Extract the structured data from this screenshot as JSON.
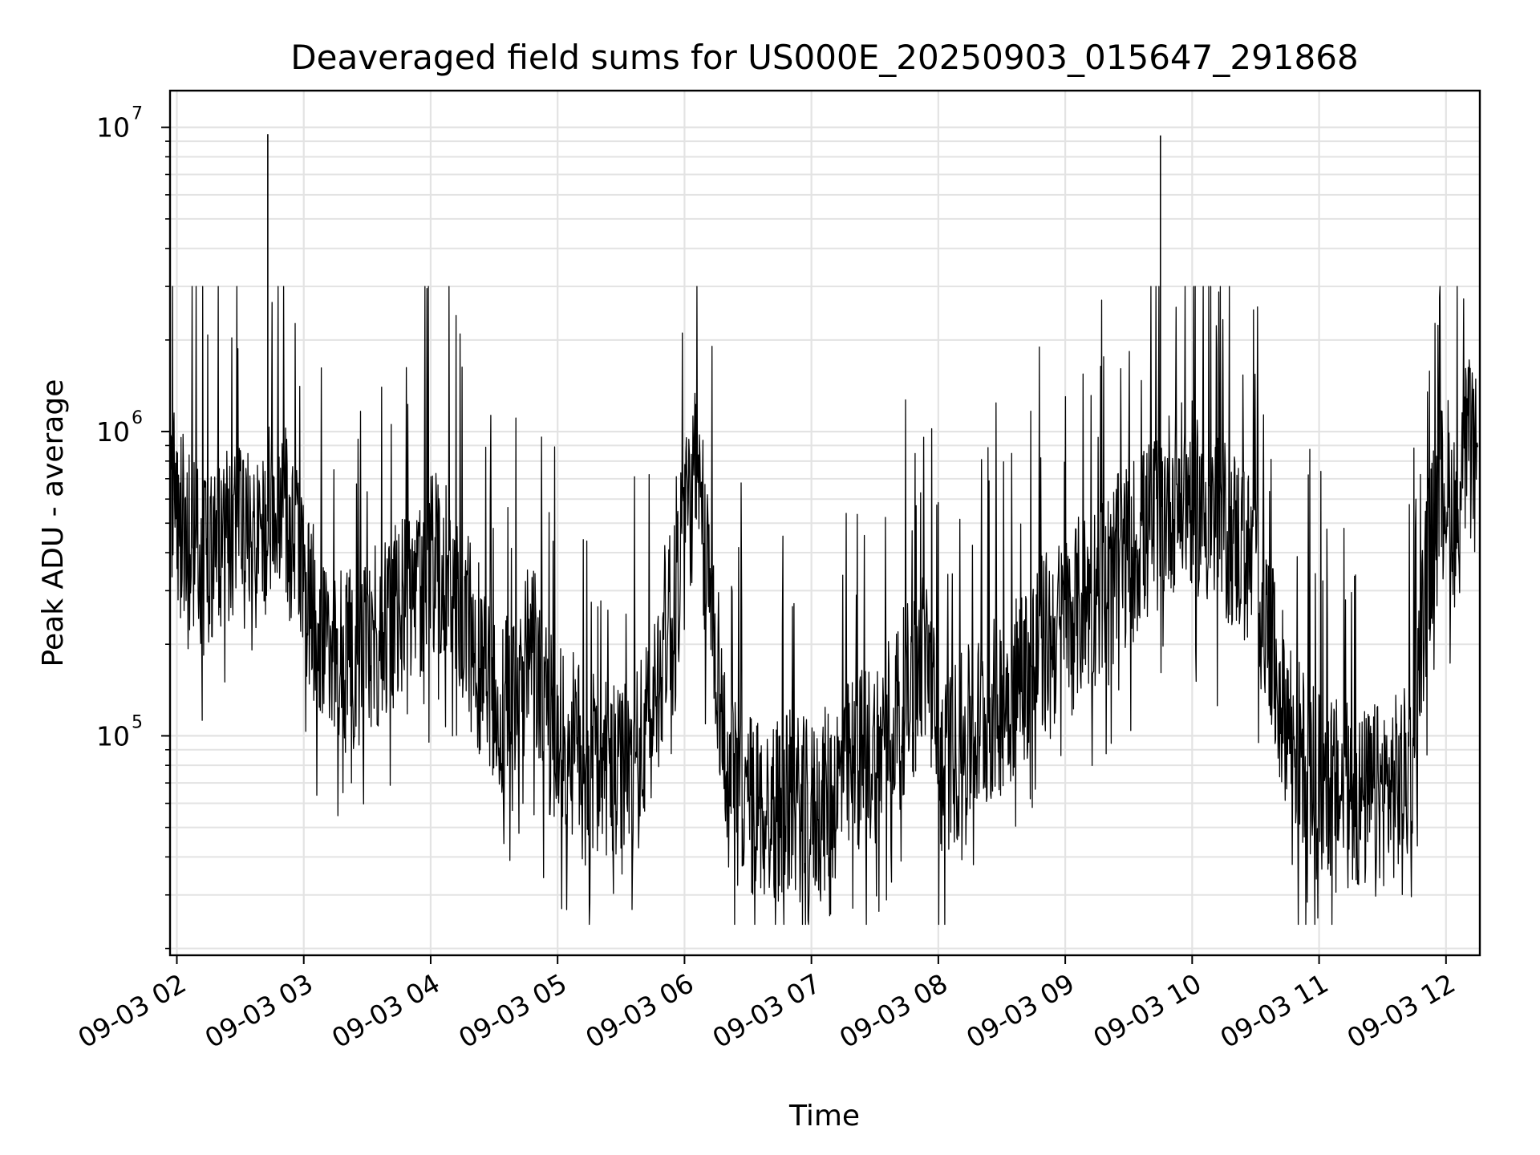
{
  "chart_data": {
    "type": "line",
    "title": "Deaveraged field sums for US000E_20250903_015647_291868",
    "xlabel": "Time",
    "ylabel": "Peak ADU - average",
    "y_scale": "log",
    "ylim": [
      19000,
      13200000
    ],
    "xlim": [
      "2025-09-03T01:56:47",
      "2025-09-03T12:16:00"
    ],
    "x_ticks": [
      "09-03 02",
      "09-03 03",
      "09-03 04",
      "09-03 05",
      "09-03 06",
      "09-03 07",
      "09-03 08",
      "09-03 09",
      "09-03 10",
      "09-03 11",
      "09-03 12"
    ],
    "y_ticks": [
      {
        "base": "10",
        "exp": "5",
        "value": 100000
      },
      {
        "base": "10",
        "exp": "6",
        "value": 1000000
      },
      {
        "base": "10",
        "exp": "7",
        "value": 10000000
      }
    ],
    "grid": true,
    "line_color": "#000000",
    "series": [
      {
        "x": [
          "2025-09-03T01:57",
          "2025-09-03T02:05",
          "2025-09-03T02:15",
          "2025-09-03T02:25",
          "2025-09-03T02:35",
          "2025-09-03T02:42",
          "2025-09-03T02:50",
          "2025-09-03T03:00",
          "2025-09-03T03:10",
          "2025-09-03T03:20",
          "2025-09-03T03:30",
          "2025-09-03T03:40",
          "2025-09-03T03:50",
          "2025-09-03T04:00",
          "2025-09-03T04:10",
          "2025-09-03T04:20",
          "2025-09-03T04:30",
          "2025-09-03T04:40",
          "2025-09-03T04:48",
          "2025-09-03T04:55",
          "2025-09-03T05:00",
          "2025-09-03T05:10",
          "2025-09-03T05:20",
          "2025-09-03T05:30",
          "2025-09-03T05:40",
          "2025-09-03T05:45",
          "2025-09-03T05:50",
          "2025-09-03T06:00",
          "2025-09-03T06:05",
          "2025-09-03T06:10",
          "2025-09-03T06:15",
          "2025-09-03T06:20",
          "2025-09-03T06:30",
          "2025-09-03T06:40",
          "2025-09-03T06:50",
          "2025-09-03T07:00",
          "2025-09-03T07:10",
          "2025-09-03T07:20",
          "2025-09-03T07:30",
          "2025-09-03T07:40",
          "2025-09-03T07:50",
          "2025-09-03T07:55",
          "2025-09-03T08:00",
          "2025-09-03T08:10",
          "2025-09-03T08:20",
          "2025-09-03T08:30",
          "2025-09-03T08:40",
          "2025-09-03T08:50",
          "2025-09-03T09:00",
          "2025-09-03T09:10",
          "2025-09-03T09:20",
          "2025-09-03T09:30",
          "2025-09-03T09:40",
          "2025-09-03T09:45",
          "2025-09-03T09:50",
          "2025-09-03T10:00",
          "2025-09-03T10:10",
          "2025-09-03T10:20",
          "2025-09-03T10:30",
          "2025-09-03T10:40",
          "2025-09-03T10:50",
          "2025-09-03T11:00",
          "2025-09-03T11:10",
          "2025-09-03T11:20",
          "2025-09-03T11:30",
          "2025-09-03T11:40",
          "2025-09-03T11:45",
          "2025-09-03T11:50",
          "2025-09-03T11:55",
          "2025-09-03T12:00",
          "2025-09-03T12:05",
          "2025-09-03T12:10",
          "2025-09-03T12:15"
        ],
        "values": [
          600000,
          450000,
          380000,
          460000,
          420000,
          500000,
          550000,
          300000,
          200000,
          170000,
          200000,
          240000,
          280000,
          380000,
          350000,
          200000,
          140000,
          120000,
          200000,
          110000,
          100000,
          90000,
          75000,
          70000,
          90000,
          120000,
          200000,
          500000,
          700000,
          400000,
          200000,
          70000,
          60000,
          55000,
          60000,
          55000,
          65000,
          80000,
          90000,
          120000,
          150000,
          200000,
          80000,
          90000,
          110000,
          130000,
          160000,
          200000,
          230000,
          280000,
          320000,
          400000,
          470000,
          550000,
          600000,
          620000,
          500000,
          450000,
          350000,
          150000,
          90000,
          70000,
          65000,
          60000,
          65000,
          70000,
          90000,
          300000,
          500000,
          700000,
          500000,
          900000,
          700000
        ],
        "peaks": [
          {
            "x": "2025-09-03T02:43",
            "value": 9500000
          },
          {
            "x": "2025-09-03T09:45",
            "value": 9400000
          }
        ]
      }
    ]
  }
}
